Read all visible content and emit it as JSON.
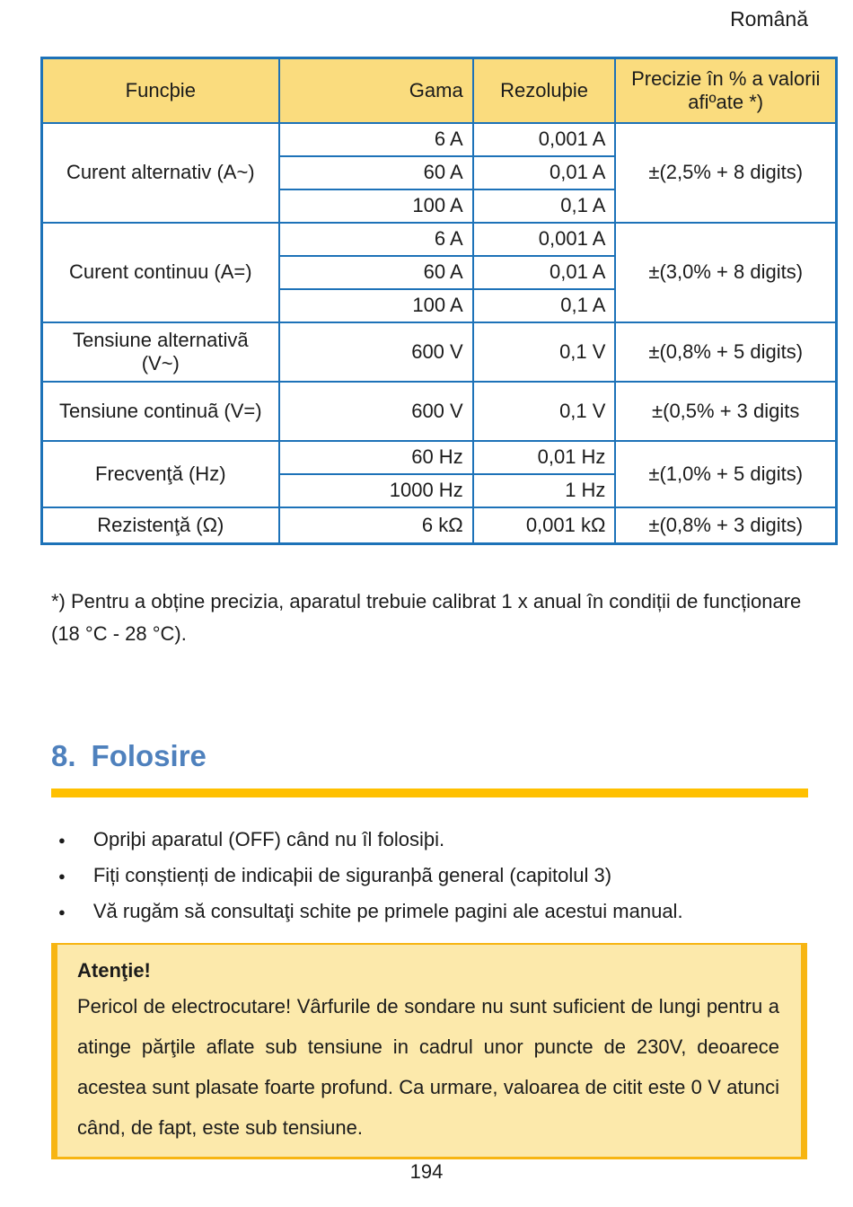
{
  "page": {
    "language_label": "Română",
    "page_number": "194"
  },
  "table": {
    "headers": {
      "function": "Funcþie",
      "range": "Gama",
      "resolution": "Rezoluþie",
      "precision": "Precizie în % a valorii afiºate *)"
    },
    "groups": [
      {
        "function": "Curent alternativ (A~)",
        "rows": [
          [
            "6 A",
            "0,001 A"
          ],
          [
            "60 A",
            "0,01 A"
          ],
          [
            "100 A",
            "0,1 A"
          ]
        ],
        "precision": "±(2,5% + 8 digits)"
      },
      {
        "function": "Curent continuu (A=)",
        "rows": [
          [
            "6 A",
            "0,001 A"
          ],
          [
            "60 A",
            "0,01 A"
          ],
          [
            "100 A",
            "0,1 A"
          ]
        ],
        "precision": "±(3,0% + 8 digits)"
      },
      {
        "function": "Tensiune alternativã (V~)",
        "rows": [
          [
            "600 V",
            "0,1 V"
          ]
        ],
        "precision": "±(0,8% + 5 digits)"
      },
      {
        "function": "Tensiune continuã (V=)",
        "rows": [
          [
            "600 V",
            "0,1 V"
          ]
        ],
        "precision": "±(0,5% + 3 digits"
      },
      {
        "function": "Frecvenţă (Hz)",
        "rows": [
          [
            "60 Hz",
            "0,01 Hz"
          ],
          [
            "1000 Hz",
            "1 Hz"
          ]
        ],
        "precision": "±(1,0% + 5 digits)"
      },
      {
        "function": "Rezistenţă (Ω)",
        "rows": [
          [
            "6 kΩ",
            "0,001 kΩ"
          ]
        ],
        "precision": "±(0,8% + 3 digits)"
      }
    ]
  },
  "footnote": "*) Pentru a obține precizia, aparatul trebuie calibrat 1 x anual în condiții de funcționare (18 °C - 28 °C).",
  "section": {
    "number": "8.",
    "title": "Folosire"
  },
  "bullets": [
    "Opriþi aparatul (OFF) când nu îl folosiþi.",
    "Fiți conștienți de indicaþii de siguranþã general (capitolul 3)",
    "Vă rugăm să consultaţi schite pe primele pagini ale acestui manual."
  ],
  "warning": {
    "title": "Atenţie!",
    "body": "Pericol de electrocutare! Vârfurile de sondare nu sunt suficient de lungi pentru a atinge părţile aflate sub tensiune in cadrul unor puncte de 230V, deoarece acestea sunt plasate foarte profund. Ca urmare, valoarea de citit este 0 V atunci când, de fapt, este sub tensiune.",
    "bullet_glyph": "●"
  },
  "colors": {
    "table_border_blue": "#1d72b8",
    "table_header_fill": "#fadc7e",
    "heading_blue": "#4f81bd",
    "heading_bar_amber": "#ffc000",
    "warning_fill": "#fce9ab",
    "warning_border": "#f7b512"
  }
}
